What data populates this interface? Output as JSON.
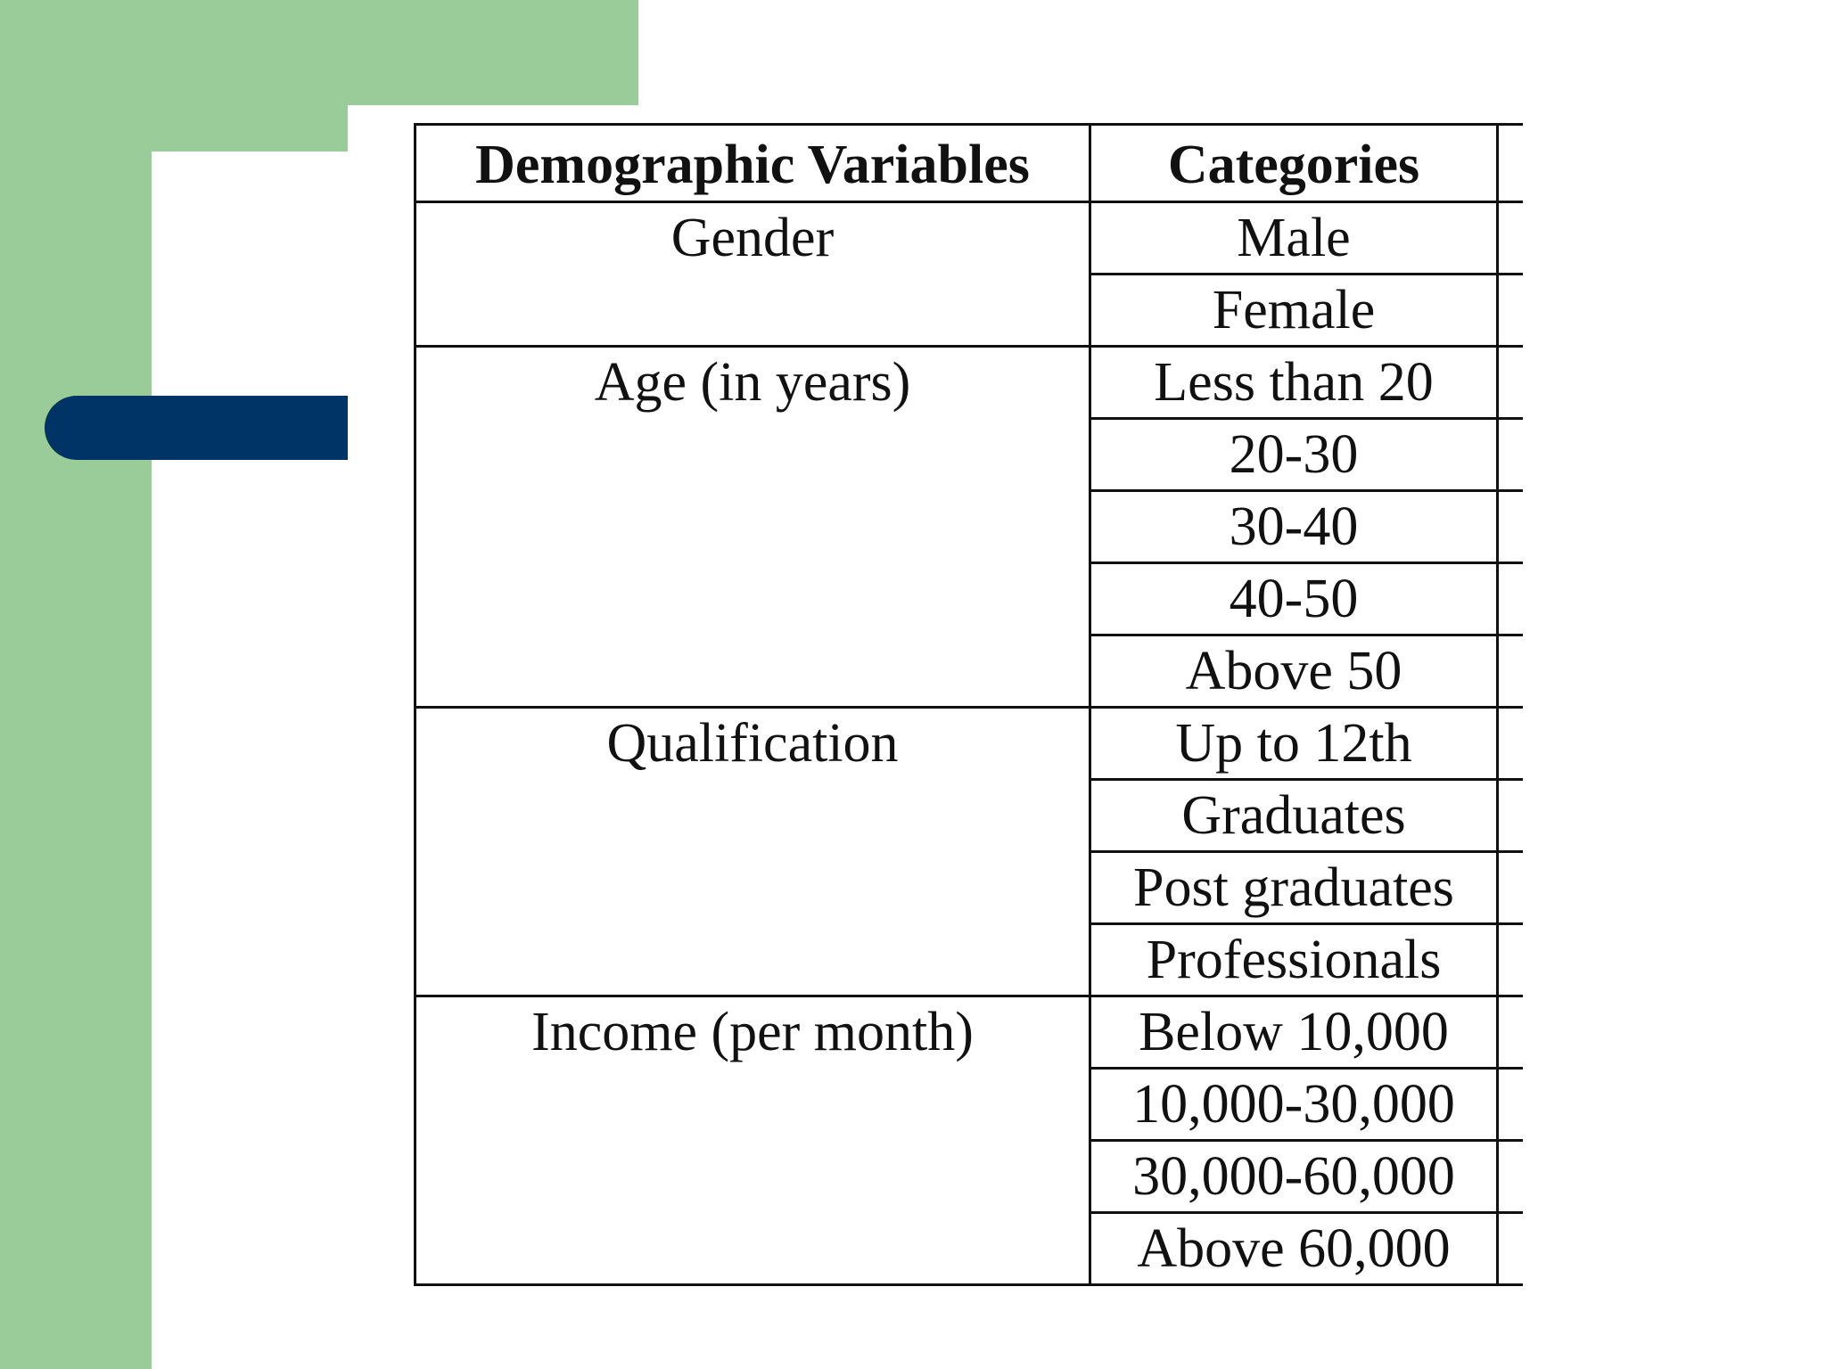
{
  "colors": {
    "accent_green": "#99cc99",
    "accent_blue": "#003366",
    "background": "#ffffff",
    "table_line": "#111111"
  },
  "table": {
    "headers": [
      "Demographic Variables",
      "Categories"
    ],
    "groups": [
      {
        "variable": "Gender",
        "categories": [
          "Male",
          "Female"
        ]
      },
      {
        "variable": "Age (in years)",
        "categories": [
          "Less than 20",
          "20-30",
          "30-40",
          "40-50",
          "Above 50"
        ]
      },
      {
        "variable": "Qualification",
        "categories": [
          "Up to 12th",
          "Graduates",
          "Post graduates",
          "Professionals"
        ]
      },
      {
        "variable": "Income (per month)",
        "categories": [
          "Below 10,000",
          "10,000-30,000",
          "30,000-60,000",
          "Above 60,000"
        ]
      }
    ]
  }
}
